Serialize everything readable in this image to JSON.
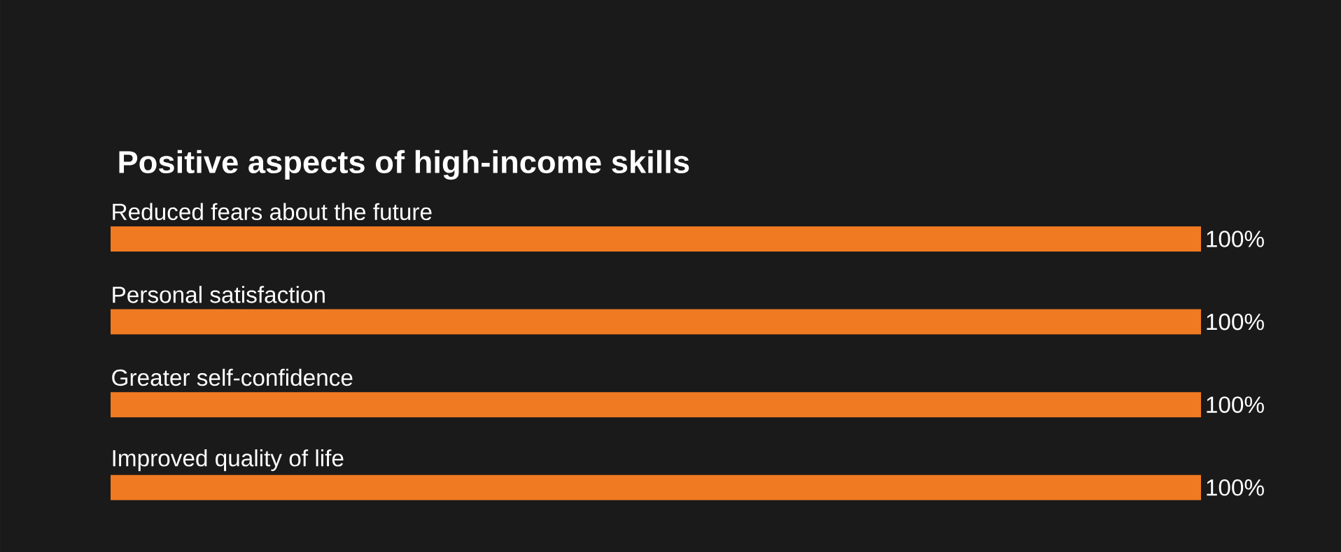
{
  "chart_data": {
    "type": "bar",
    "orientation": "horizontal",
    "title": "Positive aspects of high-income skills",
    "categories": [
      "Reduced fears about the future",
      "Personal satisfaction",
      "Greater self-confidence",
      "Improved quality of life"
    ],
    "values": [
      100,
      100,
      100,
      100
    ],
    "value_labels": [
      "100%",
      "100%",
      "100%",
      "100%"
    ],
    "color": "#f07a22"
  }
}
